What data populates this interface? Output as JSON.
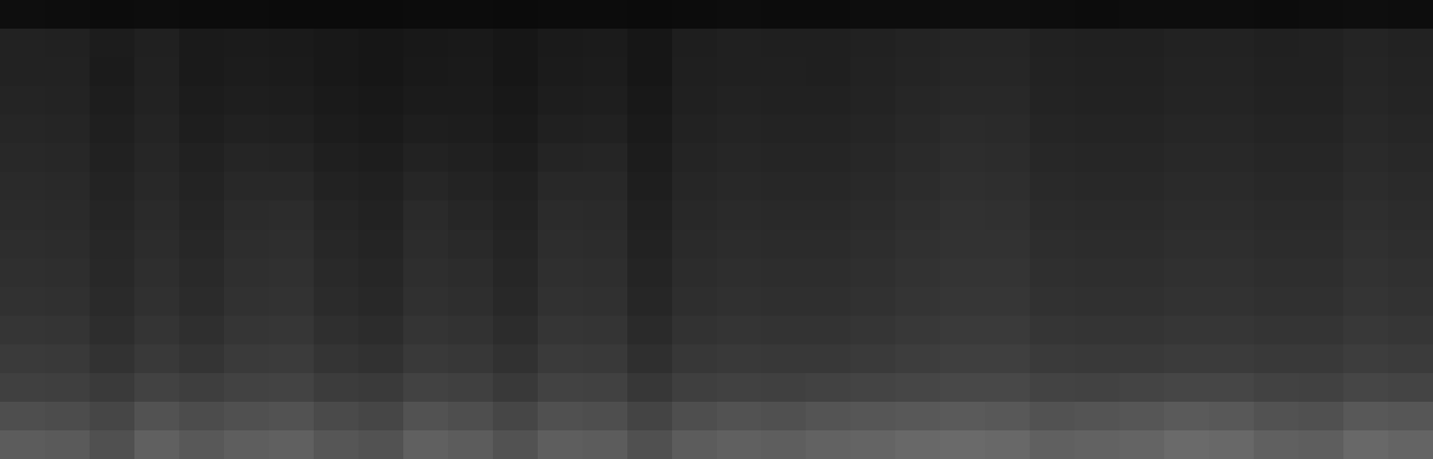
{
  "chart_data": {
    "type": "heatmap",
    "tick_labels": false,
    "clim": [
      0,
      255
    ],
    "cells": [
      [
        14,
        13,
        12,
        13,
        12,
        12,
        11,
        11,
        11,
        12,
        12,
        11,
        12,
        12,
        11,
        12,
        13,
        12,
        12,
        13,
        13,
        14,
        14,
        13,
        12,
        13,
        13,
        13,
        12,
        13,
        14,
        13
      ],
      [
        34,
        33,
        28,
        32,
        26,
        27,
        26,
        24,
        22,
        24,
        25,
        22,
        26,
        27,
        22,
        30,
        32,
        31,
        31,
        33,
        35,
        37,
        37,
        33,
        32,
        32,
        34,
        34,
        32,
        33,
        36,
        34
      ],
      [
        34,
        34,
        27,
        33,
        26,
        28,
        27,
        24,
        22,
        25,
        26,
        22,
        27,
        28,
        22,
        31,
        32,
        32,
        31,
        34,
        36,
        38,
        38,
        34,
        33,
        33,
        35,
        35,
        33,
        33,
        37,
        35
      ],
      [
        36,
        35,
        29,
        34,
        28,
        30,
        29,
        26,
        24,
        27,
        27,
        24,
        29,
        30,
        24,
        32,
        34,
        33,
        33,
        35,
        38,
        40,
        40,
        35,
        34,
        34,
        36,
        36,
        34,
        34,
        38,
        36
      ],
      [
        38,
        37,
        31,
        36,
        30,
        33,
        32,
        28,
        26,
        30,
        29,
        26,
        32,
        33,
        26,
        34,
        36,
        35,
        35,
        37,
        40,
        43,
        42,
        37,
        36,
        36,
        38,
        38,
        36,
        36,
        40,
        38
      ],
      [
        40,
        39,
        33,
        38,
        33,
        37,
        36,
        31,
        29,
        34,
        32,
        29,
        36,
        37,
        28,
        36,
        38,
        37,
        37,
        39,
        42,
        45,
        44,
        39,
        38,
        38,
        40,
        40,
        38,
        38,
        42,
        40
      ],
      [
        42,
        41,
        35,
        40,
        35,
        40,
        40,
        34,
        32,
        38,
        35,
        32,
        40,
        40,
        30,
        38,
        40,
        39,
        39,
        41,
        44,
        47,
        46,
        41,
        40,
        40,
        42,
        42,
        40,
        40,
        44,
        42
      ],
      [
        43,
        42,
        37,
        42,
        37,
        43,
        44,
        37,
        34,
        42,
        38,
        34,
        43,
        42,
        32,
        40,
        42,
        41,
        41,
        43,
        46,
        49,
        48,
        43,
        42,
        42,
        44,
        44,
        42,
        42,
        46,
        44
      ],
      [
        45,
        44,
        39,
        44,
        39,
        45,
        46,
        39,
        36,
        44,
        41,
        36,
        45,
        44,
        34,
        42,
        44,
        43,
        43,
        45,
        48,
        50,
        50,
        45,
        44,
        44,
        46,
        46,
        44,
        44,
        48,
        46
      ],
      [
        47,
        46,
        40,
        46,
        41,
        47,
        48,
        41,
        38,
        46,
        44,
        38,
        47,
        46,
        36,
        44,
        46,
        45,
        45,
        47,
        50,
        52,
        52,
        47,
        46,
        46,
        48,
        48,
        46,
        46,
        50,
        48
      ],
      [
        49,
        48,
        42,
        48,
        43,
        49,
        50,
        43,
        40,
        48,
        46,
        40,
        49,
        48,
        38,
        46,
        48,
        47,
        47,
        49,
        52,
        54,
        54,
        49,
        48,
        48,
        50,
        50,
        48,
        48,
        52,
        50
      ],
      [
        53,
        52,
        45,
        52,
        47,
        53,
        54,
        47,
        44,
        52,
        50,
        44,
        53,
        52,
        42,
        50,
        52,
        51,
        51,
        53,
        56,
        58,
        58,
        53,
        52,
        52,
        54,
        54,
        52,
        52,
        56,
        54
      ],
      [
        58,
        57,
        50,
        57,
        52,
        58,
        59,
        52,
        49,
        57,
        55,
        49,
        58,
        57,
        47,
        55,
        57,
        56,
        56,
        58,
        61,
        63,
        63,
        58,
        57,
        57,
        59,
        59,
        57,
        57,
        61,
        59
      ],
      [
        64,
        63,
        58,
        66,
        62,
        66,
        67,
        60,
        58,
        66,
        64,
        57,
        66,
        65,
        55,
        63,
        65,
        64,
        66,
        68,
        70,
        72,
        72,
        67,
        66,
        68,
        70,
        70,
        66,
        65,
        70,
        68
      ],
      [
        78,
        76,
        70,
        82,
        76,
        80,
        82,
        74,
        70,
        82,
        78,
        70,
        80,
        78,
        68,
        78,
        82,
        80,
        84,
        86,
        88,
        90,
        88,
        82,
        84,
        86,
        90,
        88,
        82,
        80,
        88,
        86
      ],
      [
        92,
        90,
        80,
        96,
        88,
        94,
        96,
        86,
        82,
        96,
        92,
        82,
        94,
        92,
        80,
        92,
        96,
        94,
        98,
        100,
        104,
        106,
        104,
        96,
        98,
        100,
        106,
        104,
        96,
        94,
        104,
        100
      ]
    ]
  }
}
